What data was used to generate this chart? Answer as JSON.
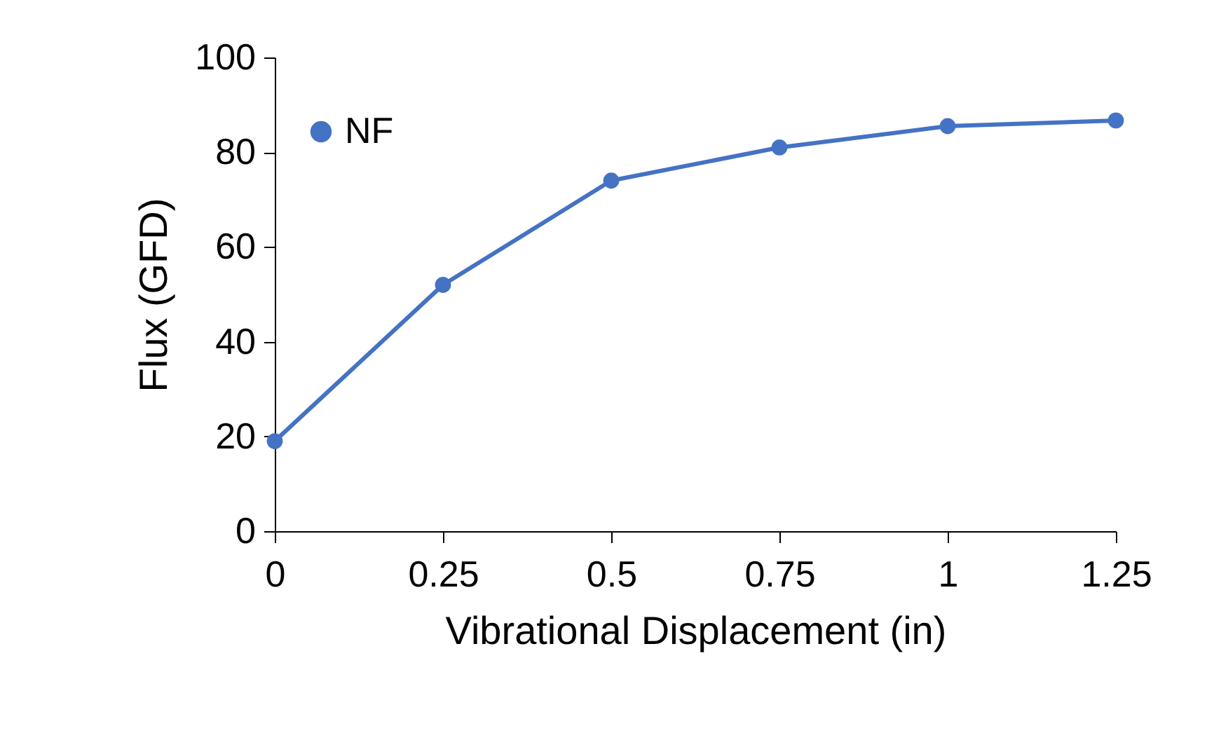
{
  "chart_data": {
    "type": "line",
    "xlabel": "Vibrational Displacement (in)",
    "ylabel": "Flux (GFD)",
    "x": [
      0,
      0.25,
      0.5,
      0.75,
      1,
      1.25
    ],
    "series": [
      {
        "name": "NF",
        "color": "#4472c4",
        "values": [
          19,
          52,
          74,
          81,
          85.5,
          86.7
        ]
      }
    ],
    "xlim": [
      0,
      1.25
    ],
    "xticks": [
      0,
      0.25,
      0.5,
      0.75,
      1,
      1.25
    ],
    "ylim": [
      0,
      100
    ],
    "yticks": [
      0,
      20,
      40,
      60,
      80,
      100
    ],
    "grid": false,
    "legend": "top left",
    "marker": "circle",
    "line_style": "solid"
  }
}
